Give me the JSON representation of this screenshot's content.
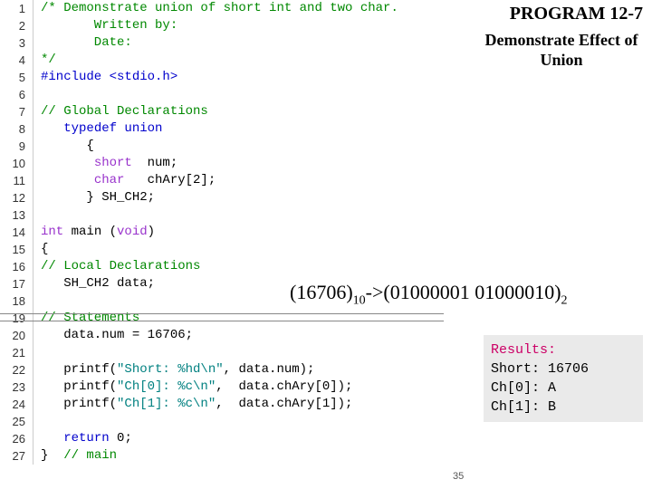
{
  "title1": "PROGRAM 12-7",
  "title2": "Demonstrate Effect of Union",
  "code": [
    {
      "n": "1",
      "frags": [
        {
          "t": "/* Demonstrate union of short int and two char.",
          "c": "cm"
        }
      ]
    },
    {
      "n": "2",
      "frags": [
        {
          "t": "       Written by:",
          "c": "cm"
        }
      ]
    },
    {
      "n": "3",
      "frags": [
        {
          "t": "       Date:",
          "c": "cm"
        }
      ]
    },
    {
      "n": "4",
      "frags": [
        {
          "t": "*/",
          "c": "cm"
        }
      ]
    },
    {
      "n": "5",
      "frags": [
        {
          "t": "#include ",
          "c": "kw"
        },
        {
          "t": "<stdio.h>",
          "c": "kw"
        }
      ]
    },
    {
      "n": "6",
      "frags": []
    },
    {
      "n": "7",
      "frags": [
        {
          "t": "// Global Declarations",
          "c": "cm"
        }
      ]
    },
    {
      "n": "8",
      "frags": [
        {
          "t": "   ",
          "c": ""
        },
        {
          "t": "typedef union",
          "c": "kw"
        }
      ]
    },
    {
      "n": "9",
      "frags": [
        {
          "t": "      {",
          "c": ""
        }
      ]
    },
    {
      "n": "10",
      "frags": [
        {
          "t": "       ",
          "c": ""
        },
        {
          "t": "short",
          "c": "ty"
        },
        {
          "t": "  num;",
          "c": ""
        }
      ]
    },
    {
      "n": "11",
      "frags": [
        {
          "t": "       ",
          "c": ""
        },
        {
          "t": "char",
          "c": "ty"
        },
        {
          "t": "   chAry[2];",
          "c": ""
        }
      ]
    },
    {
      "n": "12",
      "frags": [
        {
          "t": "      } SH_CH2;",
          "c": ""
        }
      ]
    },
    {
      "n": "13",
      "frags": []
    },
    {
      "n": "14",
      "frags": [
        {
          "t": "int",
          "c": "ty"
        },
        {
          "t": " main (",
          "c": ""
        },
        {
          "t": "void",
          "c": "ty"
        },
        {
          "t": ")",
          "c": ""
        }
      ]
    },
    {
      "n": "15",
      "frags": [
        {
          "t": "{",
          "c": ""
        }
      ]
    },
    {
      "n": "16",
      "frags": [
        {
          "t": "// Local Declarations",
          "c": "cm"
        }
      ]
    },
    {
      "n": "17",
      "frags": [
        {
          "t": "   SH_CH2 data;",
          "c": ""
        }
      ]
    },
    {
      "n": "18",
      "frags": []
    },
    {
      "n": "19",
      "frags": [
        {
          "t": "// Statements",
          "c": "cm"
        }
      ]
    },
    {
      "n": "20",
      "frags": [
        {
          "t": "   data.num = 16706;",
          "c": ""
        }
      ]
    },
    {
      "n": "21",
      "frags": []
    },
    {
      "n": "22",
      "frags": [
        {
          "t": "   printf(",
          "c": ""
        },
        {
          "t": "\"Short: %hd\\n\"",
          "c": "str"
        },
        {
          "t": ", data.num);",
          "c": ""
        }
      ]
    },
    {
      "n": "23",
      "frags": [
        {
          "t": "   printf(",
          "c": ""
        },
        {
          "t": "\"Ch[0]: %c\\n\"",
          "c": "str"
        },
        {
          "t": ",  data.chAry[0]);",
          "c": ""
        }
      ]
    },
    {
      "n": "24",
      "frags": [
        {
          "t": "   printf(",
          "c": ""
        },
        {
          "t": "\"Ch[1]: %c\\n\"",
          "c": "str"
        },
        {
          "t": ",  data.chAry[1]);",
          "c": ""
        }
      ]
    },
    {
      "n": "25",
      "frags": []
    },
    {
      "n": "26",
      "frags": [
        {
          "t": "   ",
          "c": ""
        },
        {
          "t": "return",
          "c": "kw"
        },
        {
          "t": " 0;",
          "c": ""
        }
      ]
    },
    {
      "n": "27",
      "frags": [
        {
          "t": "}  ",
          "c": ""
        },
        {
          "t": "// main",
          "c": "cm"
        }
      ]
    }
  ],
  "formula": {
    "a": "(16706)",
    "asub": "10",
    "arrow": "->",
    "b": "(01000001 01000010)",
    "bsub": "2"
  },
  "results": {
    "title": "Results:",
    "lines": [
      "Short: 16706",
      "Ch[0]: A",
      "Ch[1]: B"
    ]
  },
  "pagenum": "35",
  "hr_positions": [
    346,
    354
  ]
}
